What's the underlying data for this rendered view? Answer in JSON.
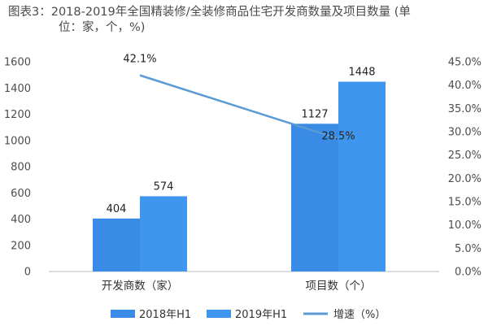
{
  "chart_data": {
    "type": "bar",
    "title": "图表3：2018-2019年全国精装修/全装修商品住宅开发商数量及项目数量 (单位：家，个，%)",
    "categories": [
      "开发商数（家）",
      "项目数（个）"
    ],
    "series": [
      {
        "name": "2018年H1",
        "values": [
          404,
          1127
        ],
        "color": "#3a8be6"
      },
      {
        "name": "2019年H1",
        "values": [
          574,
          1448
        ],
        "color": "#3f96ee"
      }
    ],
    "line_series": {
      "name": "增速（%）",
      "values": [
        42.1,
        28.5
      ],
      "color": "#5b9bd5"
    },
    "y_left": {
      "min": 0,
      "max": 1600,
      "ticks": [
        "0",
        "200",
        "400",
        "600",
        "800",
        "1000",
        "1200",
        "1400",
        "1600"
      ]
    },
    "y_right": {
      "min": 0,
      "max": 45,
      "ticks": [
        "0.0%",
        "5.0%",
        "10.0%",
        "15.0%",
        "20.0%",
        "25.0%",
        "30.0%",
        "35.0%",
        "40.0%",
        "45.0%"
      ]
    },
    "bar_labels": [
      "404",
      "574",
      "1127",
      "1448"
    ],
    "line_labels": [
      "42.1%",
      "28.5%"
    ],
    "grid": false,
    "legend_position": "bottom"
  }
}
